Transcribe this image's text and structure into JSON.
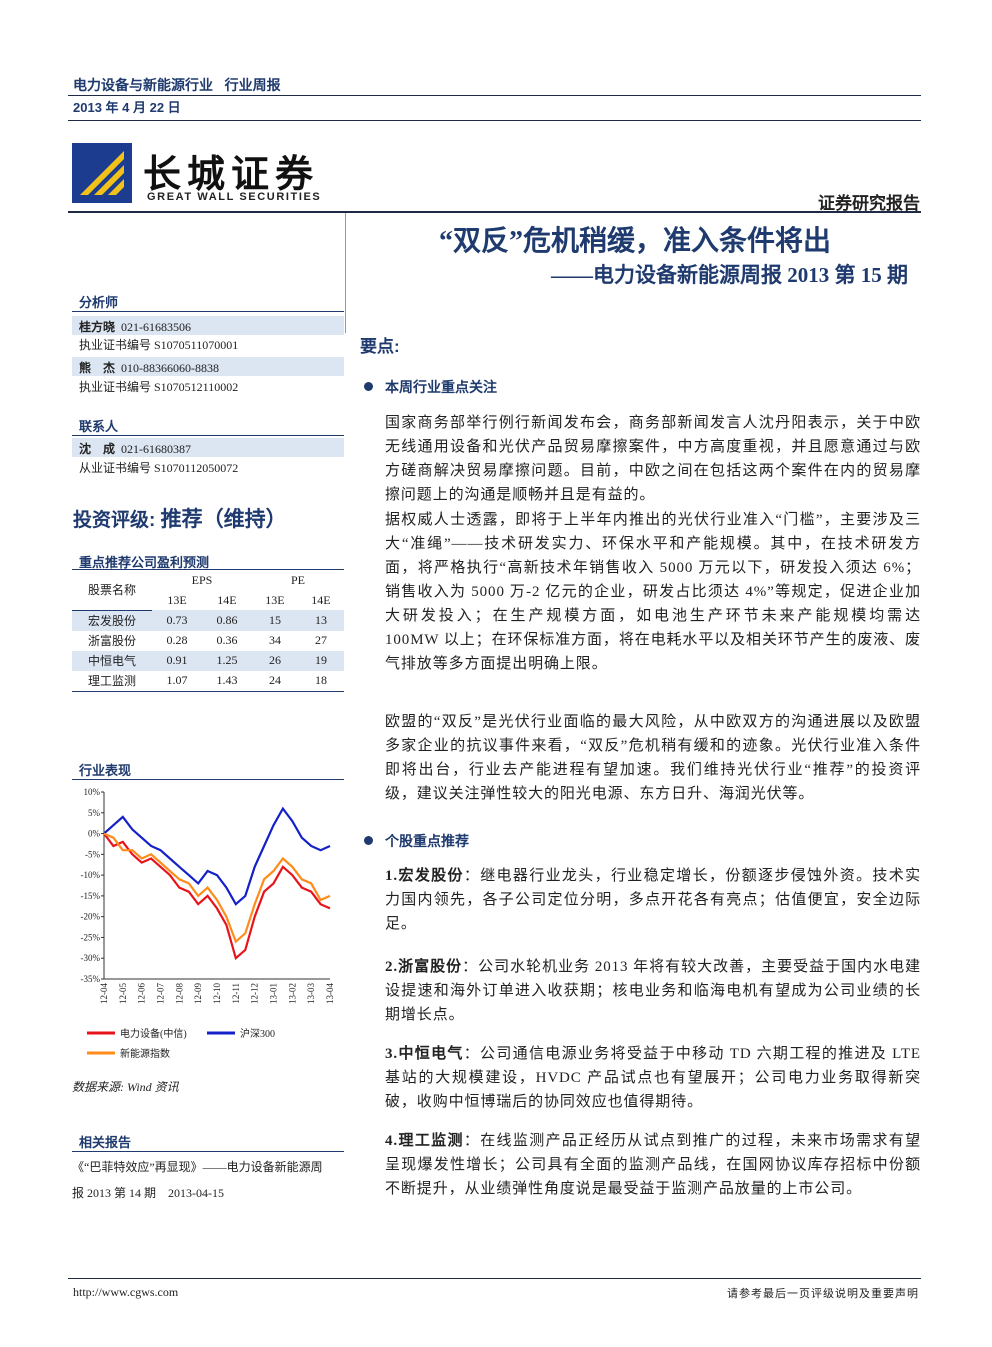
{
  "header": {
    "industry": "电力设备与新能源行业",
    "report_kind": "行业周报",
    "date": "2013 年 4 月 22 日",
    "company_cn": "长城证券",
    "company_en": "GREAT WALL SECURITIES",
    "report_type": "证券研究报告"
  },
  "title": "“双反”危机稍缓，准入条件将出",
  "subtitle": "——电力设备新能源周报 2013 第 15 期",
  "sidebar": {
    "analysts_heading": "分析师",
    "analysts": [
      {
        "name": "桂方晓",
        "phone": "021-61683506",
        "cert": "执业证书编号 S1070511070001"
      },
      {
        "name": "熊　杰",
        "phone": "010-88366060-8838",
        "cert": "执业证书编号 S1070512110002"
      }
    ],
    "contact_heading": "联系人",
    "contact": {
      "name": "沈　成",
      "phone": "021-61680387",
      "cert": "从业证书编号 S1070112050072"
    },
    "rating_label": "投资评级:",
    "rating": "推荐（维持）",
    "table": {
      "title": "重点推荐公司盈利预测",
      "header": [
        "股票名称",
        "EPS",
        "PE"
      ],
      "subheader": [
        "13E",
        "14E",
        "13E",
        "14E"
      ],
      "rows": [
        [
          "宏发股份",
          0.73,
          0.86,
          15,
          13
        ],
        [
          "浙富股份",
          0.28,
          0.36,
          34,
          27
        ],
        [
          "中恒电气",
          0.91,
          1.25,
          26,
          19
        ],
        [
          "理工监测",
          1.07,
          1.43,
          24,
          18
        ]
      ]
    },
    "chart": {
      "type": "line",
      "title": "行业表现",
      "x_labels": [
        "12-04",
        "12-05",
        "12-06",
        "12-07",
        "12-08",
        "12-09",
        "12-10",
        "12-11",
        "12-12",
        "13-01",
        "13-02",
        "13-03",
        "13-04"
      ],
      "ylim": [
        -35,
        10
      ],
      "yticks": [
        {
          "value": 10,
          "label": "10%"
        },
        {
          "value": 5,
          "label": "5%"
        },
        {
          "value": 0,
          "label": "0%"
        },
        {
          "value": -5,
          "label": "-5%"
        },
        {
          "value": -10,
          "label": "-10%"
        },
        {
          "value": -15,
          "label": "-15%"
        },
        {
          "value": -20,
          "label": "-20%"
        },
        {
          "value": -25,
          "label": "-25%"
        },
        {
          "value": -30,
          "label": "-30%"
        },
        {
          "value": -35,
          "label": "-35%"
        }
      ],
      "series": [
        {
          "name": "电力设备(中信)",
          "color": "#e8121b",
          "values": [
            0,
            -3,
            -2,
            -5,
            -7,
            -6,
            -8,
            -10,
            -13,
            -14,
            -17,
            -15,
            -18,
            -22,
            -30,
            -28,
            -20,
            -14,
            -12,
            -8,
            -10,
            -13,
            -14,
            -17,
            -18
          ]
        },
        {
          "name": "沪深300",
          "color": "#1420c8",
          "values": [
            0,
            2,
            4,
            1,
            -1,
            -3,
            -4,
            -6,
            -8,
            -10,
            -12,
            -9,
            -10,
            -13,
            -17,
            -15,
            -8,
            -3,
            2,
            6,
            3,
            -1,
            -3,
            -4,
            -3
          ]
        },
        {
          "name": "新能源指数",
          "color": "#ff8c1a",
          "values": [
            0,
            -1,
            -4,
            -4,
            -6,
            -5,
            -7,
            -9,
            -11,
            -12,
            -15,
            -13,
            -16,
            -20,
            -26,
            -24,
            -17,
            -11,
            -9,
            -6,
            -8,
            -11,
            -12,
            -16,
            -15
          ]
        }
      ],
      "source": "数据来源: Wind 资讯"
    },
    "related_heading": "相关报告",
    "related": [
      "《“巴菲特效应”再显现》——电力设备新能源周",
      "报 2013 第 14 期　2013-04-15"
    ]
  },
  "main": {
    "key_points": "要点:",
    "section1": {
      "heading": "本周行业重点关注",
      "paragraphs": [
        "国家商务部举行例行新闻发布会，商务部新闻发言人沈丹阳表示，关于中欧无线通用设备和光伏产品贸易摩擦案件，中方高度重视，并且愿意通过与欧方磋商解决贸易摩擦问题。目前，中欧之间在包括这两个案件在内的贸易摩擦问题上的沟通是顺畅并且是有益的。",
        "据权威人士透露，即将于上半年内推出的光伏行业准入“门槛”，主要涉及三大“准绳”——技术研发实力、环保水平和产能规模。其中，在技术研发方面，将严格执行“高新技术年销售收入 5000 万元以下，研发投入须达 6%；销售收入为 5000 万-2 亿元的企业，研发占比须达 4%”等规定，促进企业加大研发投入；在生产规模方面，如电池生产环节未来产能规模均需达 100MW 以上；在环保标准方面，将在电耗水平以及相关环节产生的废液、废气排放等多方面提出明确上限。",
        "欧盟的“双反”是光伏行业面临的最大风险，从中欧双方的沟通进展以及欧盟多家企业的抗议事件来看，“双反”危机稍有缓和的迹象。光伏行业准入条件即将出台，行业去产能进程有望加速。我们维持光伏行业“推荐”的投资评级，建议关注弹性较大的阳光电源、东方日升、海润光伏等。"
      ]
    },
    "section2": {
      "heading": "个股重点推荐",
      "items": [
        {
          "label": "1.宏发股份",
          "text": "：继电器行业龙头，行业稳定增长，份额逐步侵蚀外资。技术实力国内领先，各子公司定位分明，多点开花各有亮点；估值便宜，安全边际足。"
        },
        {
          "label": "2.浙富股份",
          "text": "：公司水轮机业务 2013 年将有较大改善，主要受益于国内水电建设提速和海外订单进入收获期；核电业务和临海电机有望成为公司业绩的长期增长点。"
        },
        {
          "label": "3.中恒电气",
          "text": "：公司通信电源业务将受益于中移动 TD 六期工程的推进及 LTE 基站的大规模建设，HVDC 产品试点也有望展开；公司电力业务取得新突破，收购中恒博瑞后的协同效应也值得期待。"
        },
        {
          "label": "4.理工监测",
          "text": "：在线监测产品正经历从试点到推广的过程，未来市场需求有望呈现爆发性增长；公司具有全面的监测产品线，在国网协议库存招标中份额不断提升，从业绩弹性角度说是最受益于监测产品放量的上市公司。"
        }
      ]
    }
  },
  "footer": {
    "url": "http://www.cgws.com",
    "note": "请参考最后一页评级说明及重要声明"
  }
}
